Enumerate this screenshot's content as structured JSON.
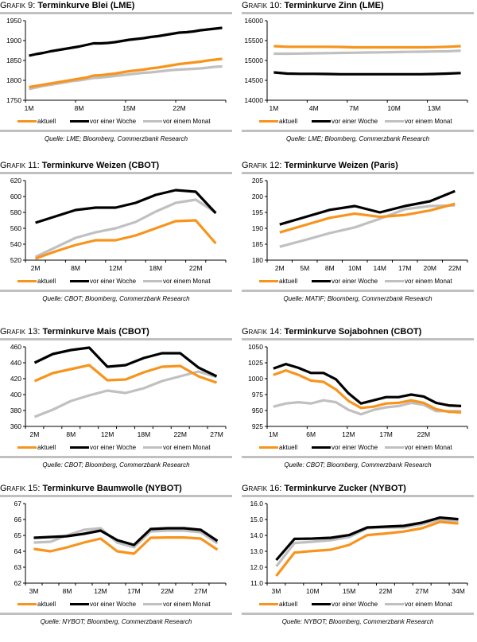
{
  "legend_labels": [
    "aktuell",
    "vor einer Woche",
    "vor einem Monat"
  ],
  "series_colors": {
    "aktuell": "#f7941d",
    "vor einer Woche": "#000000",
    "vor einem Monat": "#c0c0c0"
  },
  "chart_data": [
    {
      "id": "grafik-9",
      "type": "line",
      "prefix": "Grafik 9: ",
      "title": "Terminkurve Blei (LME)",
      "source": "Quelle: LME; Bloomberg, Commerzbank Research",
      "ylim": [
        1750,
        1950
      ],
      "yticks": [
        "1750",
        "1800",
        "1850",
        "1900",
        "1950"
      ],
      "ytick_values": [
        1750,
        1800,
        1850,
        1900,
        1950
      ],
      "n_points": 28,
      "xtick_labels": [
        {
          "i": 0,
          "label": "1M"
        },
        {
          "i": 7,
          "label": "8M"
        },
        {
          "i": 14,
          "label": "15M"
        },
        {
          "i": 21,
          "label": "22M"
        }
      ],
      "n_xticks": 4,
      "series": [
        {
          "name": "aktuell",
          "values": [
            1783,
            1786,
            1789,
            1792,
            1795,
            1798,
            1801,
            1804,
            1807,
            1812,
            1813,
            1815,
            1817,
            1820,
            1823,
            1825,
            1827,
            1830,
            1832,
            1835,
            1838,
            1841,
            1843,
            1845,
            1847,
            1850,
            1852,
            1854
          ]
        },
        {
          "name": "vor einer Woche",
          "values": [
            1862,
            1866,
            1869,
            1873,
            1876,
            1879,
            1882,
            1885,
            1889,
            1893,
            1893,
            1894,
            1896,
            1899,
            1902,
            1904,
            1906,
            1909,
            1911,
            1914,
            1917,
            1920,
            1921,
            1923,
            1926,
            1928,
            1930,
            1932
          ]
        },
        {
          "name": "vor einem Monat",
          "values": [
            1778,
            1782,
            1786,
            1789,
            1792,
            1795,
            1798,
            1800,
            1803,
            1806,
            1807,
            1809,
            1811,
            1813,
            1815,
            1817,
            1819,
            1820,
            1822,
            1824,
            1826,
            1827,
            1828,
            1829,
            1830,
            1832,
            1834,
            1835
          ]
        }
      ]
    },
    {
      "id": "grafik-10",
      "type": "line",
      "prefix": "Grafik 10: ",
      "title": "Terminkurve Zinn (LME)",
      "source": "Quelle: LME; Bloomberg, Commerzbank Research",
      "ylim": [
        14000,
        16000
      ],
      "yticks": [
        "14000",
        "14500",
        "15000",
        "15500",
        "16000"
      ],
      "ytick_values": [
        14000,
        14500,
        15000,
        15500,
        16000
      ],
      "n_points": 15,
      "xtick_labels": [
        {
          "i": 0,
          "label": "1M"
        },
        {
          "i": 3,
          "label": "4M"
        },
        {
          "i": 6,
          "label": "7M"
        },
        {
          "i": 9,
          "label": "10M"
        },
        {
          "i": 12,
          "label": "13M"
        }
      ],
      "n_xticks": 5,
      "series": [
        {
          "name": "aktuell",
          "values": [
            15360,
            15345,
            15345,
            15345,
            15345,
            15340,
            15330,
            15330,
            15330,
            15330,
            15330,
            15330,
            15335,
            15345,
            15360
          ]
        },
        {
          "name": "vor einer Woche",
          "values": [
            14700,
            14670,
            14665,
            14665,
            14660,
            14655,
            14655,
            14655,
            14655,
            14655,
            14655,
            14655,
            14660,
            14670,
            14685
          ]
        },
        {
          "name": "vor einem Monat",
          "values": [
            15170,
            15170,
            15175,
            15180,
            15185,
            15190,
            15195,
            15200,
            15205,
            15210,
            15215,
            15220,
            15225,
            15230,
            15245
          ]
        }
      ]
    },
    {
      "id": "grafik-11",
      "type": "line",
      "prefix": "Grafik 11: ",
      "title": "Terminkurve Weizen (CBOT)",
      "source": "Quelle: CBOT; Bloomberg, Commerzbank Research",
      "ylim": [
        520,
        620
      ],
      "yticks": [
        "520",
        "540",
        "560",
        "580",
        "600",
        "620"
      ],
      "ytick_values": [
        520,
        540,
        560,
        580,
        600,
        620
      ],
      "n_points": 10,
      "xtick_labels": [
        {
          "i": 0,
          "label": "2M"
        },
        {
          "i": 2,
          "label": "8M"
        },
        {
          "i": 4,
          "label": "12M"
        },
        {
          "i": 6,
          "label": "18M"
        },
        {
          "i": 8,
          "label": "22M"
        }
      ],
      "n_xticks": 10,
      "series": [
        {
          "name": "aktuell",
          "values": [
            522,
            531,
            539,
            545,
            545,
            551,
            560,
            569,
            570,
            541
          ]
        },
        {
          "name": "vor einer Woche",
          "values": [
            567,
            575,
            583,
            586,
            586,
            592,
            602,
            608,
            606,
            579
          ]
        },
        {
          "name": "vor einem Monat",
          "values": [
            524,
            536,
            548,
            555,
            560,
            568,
            581,
            592,
            596,
            580
          ]
        }
      ]
    },
    {
      "id": "grafik-12",
      "type": "line",
      "prefix": "Grafik 12: ",
      "title": "Terminkurve Weizen (Paris)",
      "source": "Quelle: MATIF; Bloomberg, Commerzbank Research",
      "ylim": [
        180,
        205
      ],
      "yticks": [
        "180",
        "185",
        "190",
        "195",
        "200",
        "205"
      ],
      "ytick_values": [
        180,
        185,
        190,
        195,
        200,
        205
      ],
      "n_points": 8,
      "xtick_labels": [
        {
          "i": 0,
          "label": "2M"
        },
        {
          "i": 1,
          "label": "5M"
        },
        {
          "i": 2,
          "label": "8M"
        },
        {
          "i": 3,
          "label": "10M"
        },
        {
          "i": 4,
          "label": "14M"
        },
        {
          "i": 5,
          "label": "17M"
        },
        {
          "i": 6,
          "label": "20M"
        },
        {
          "i": 7,
          "label": "22M"
        }
      ],
      "n_xticks": 8,
      "series": [
        {
          "name": "aktuell",
          "values": [
            188.7,
            191.0,
            193.3,
            194.6,
            193.6,
            194.2,
            195.6,
            197.7
          ]
        },
        {
          "name": "vor einer Woche",
          "values": [
            191.2,
            193.5,
            195.8,
            197.0,
            195.0,
            197.0,
            198.5,
            201.7
          ]
        },
        {
          "name": "vor einem Monat",
          "values": [
            184.2,
            186.3,
            188.5,
            190.3,
            193.0,
            196.0,
            197.0,
            197.2
          ]
        }
      ]
    },
    {
      "id": "grafik-13",
      "type": "line",
      "prefix": "Grafik 13: ",
      "title": " Terminkurve Mais (CBOT)",
      "source": "Quelle: CBOT; Bloomberg, Commerzbank Research",
      "ylim": [
        360,
        460
      ],
      "yticks": [
        "360",
        "380",
        "400",
        "420",
        "440",
        "460"
      ],
      "ytick_values": [
        360,
        380,
        400,
        420,
        440,
        460
      ],
      "n_points": 11,
      "xtick_labels": [
        {
          "i": 0,
          "label": "2M"
        },
        {
          "i": 2,
          "label": "8M"
        },
        {
          "i": 4,
          "label": "12M"
        },
        {
          "i": 6,
          "label": "18M"
        },
        {
          "i": 8,
          "label": "22M"
        },
        {
          "i": 10,
          "label": "27M"
        }
      ],
      "n_xticks": 11,
      "series": [
        {
          "name": "aktuell",
          "values": [
            417,
            427,
            432,
            437,
            418,
            419,
            428,
            435,
            436,
            423,
            415
          ]
        },
        {
          "name": "vor einer Woche",
          "values": [
            440,
            451,
            456,
            459,
            435,
            437,
            446,
            452,
            452,
            434,
            423
          ]
        },
        {
          "name": "vor einem Monat",
          "values": [
            372,
            381,
            392,
            399,
            405,
            402,
            408,
            417,
            423,
            429,
            422
          ]
        }
      ]
    },
    {
      "id": "grafik-14",
      "type": "line",
      "prefix": "Grafik 14: ",
      "title": "Terminkurve Sojabohnen (CBOT)",
      "source": "Quelle: CBOT; Bloomberg, Commerzbank Research",
      "ylim": [
        925,
        1050
      ],
      "yticks": [
        "925",
        "950",
        "975",
        "1000",
        "1025",
        "1050"
      ],
      "ytick_values": [
        925,
        950,
        975,
        1000,
        1025,
        1050
      ],
      "n_points": 16,
      "xtick_labels": [
        {
          "i": 0,
          "label": "1M"
        },
        {
          "i": 3,
          "label": "6M"
        },
        {
          "i": 6,
          "label": "12M"
        },
        {
          "i": 9,
          "label": "17M"
        },
        {
          "i": 12,
          "label": "22M"
        }
      ],
      "n_xticks": 5,
      "series": [
        {
          "name": "aktuell",
          "values": [
            1006,
            1013,
            1006,
            997,
            995,
            983,
            965,
            954,
            956,
            961,
            962,
            966,
            962,
            952,
            948,
            947
          ]
        },
        {
          "name": "vor einer Woche",
          "values": [
            1016,
            1023,
            1017,
            1009,
            1009,
            999,
            977,
            961,
            966,
            971,
            971,
            975,
            972,
            962,
            958,
            957
          ]
        },
        {
          "name": "vor einem Monat",
          "values": [
            956,
            961,
            963,
            961,
            966,
            963,
            951,
            944,
            951,
            955,
            957,
            962,
            959,
            949,
            949,
            949
          ]
        }
      ]
    },
    {
      "id": "grafik-15",
      "type": "line",
      "prefix": "Grafik 15: ",
      "title": "Terminkurve Baumwolle (NYBOT)",
      "source": "Quelle: NYBOT; Bloomberg, Commerzbank Research",
      "ylim": [
        62,
        67
      ],
      "yticks": [
        "62",
        "63",
        "64",
        "65",
        "66",
        "67"
      ],
      "ytick_values": [
        62,
        63,
        64,
        65,
        66,
        67
      ],
      "n_points": 12,
      "xtick_labels": [
        {
          "i": 0,
          "label": "3M"
        },
        {
          "i": 2,
          "label": "8M"
        },
        {
          "i": 4,
          "label": "12M"
        },
        {
          "i": 6,
          "label": "17M"
        },
        {
          "i": 8,
          "label": "22M"
        },
        {
          "i": 10,
          "label": "27M"
        }
      ],
      "n_xticks": 12,
      "series": [
        {
          "name": "aktuell",
          "values": [
            64.15,
            64.0,
            64.25,
            64.55,
            64.8,
            64.0,
            63.85,
            64.85,
            64.87,
            64.87,
            64.8,
            64.1
          ]
        },
        {
          "name": "vor einer Woche",
          "values": [
            64.85,
            64.9,
            64.95,
            65.1,
            65.3,
            64.7,
            64.4,
            65.4,
            65.45,
            65.45,
            65.35,
            64.65
          ]
        },
        {
          "name": "vor einem Monat",
          "values": [
            64.55,
            64.6,
            65.0,
            65.35,
            65.45,
            64.55,
            64.25,
            65.25,
            65.3,
            65.3,
            65.2,
            64.5
          ]
        }
      ]
    },
    {
      "id": "grafik-16",
      "type": "line",
      "prefix": "Grafik 16: ",
      "title": "Terminkurve Zucker (NYBOT)",
      "source": "Quelle: NYBOT; Bloomberg, Commerzbank Research",
      "ylim": [
        11.0,
        16.0
      ],
      "yticks": [
        "11.0",
        "12.0",
        "13.0",
        "14.0",
        "15.0",
        "16.0"
      ],
      "ytick_values": [
        11,
        12,
        13,
        14,
        15,
        16
      ],
      "n_points": 11,
      "xtick_labels": [
        {
          "i": 0,
          "label": "3M"
        },
        {
          "i": 2,
          "label": "10M"
        },
        {
          "i": 4,
          "label": "15M"
        },
        {
          "i": 6,
          "label": "22M"
        },
        {
          "i": 8,
          "label": "27M"
        },
        {
          "i": 10,
          "label": "34M"
        }
      ],
      "n_xticks": 11,
      "series": [
        {
          "name": "aktuell",
          "values": [
            11.45,
            12.92,
            13.02,
            13.1,
            13.4,
            14.02,
            14.12,
            14.24,
            14.45,
            14.85,
            14.75
          ]
        },
        {
          "name": "vor einer Woche",
          "values": [
            12.45,
            13.78,
            13.8,
            13.85,
            14.02,
            14.5,
            14.55,
            14.6,
            14.8,
            15.12,
            15.02
          ]
        },
        {
          "name": "vor einem Monat",
          "values": [
            12.05,
            13.52,
            13.6,
            13.7,
            13.9,
            14.45,
            14.5,
            14.5,
            14.7,
            15.0,
            14.92
          ]
        }
      ]
    }
  ]
}
